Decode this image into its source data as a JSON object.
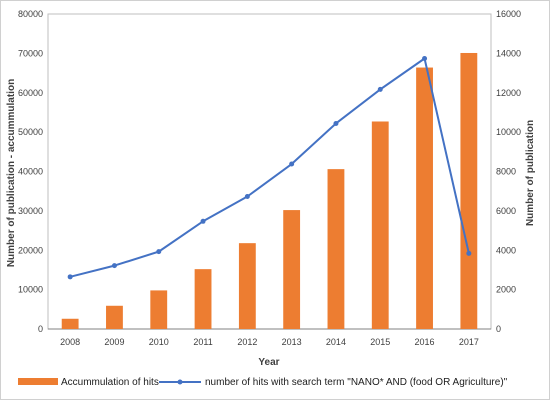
{
  "chart_data": {
    "type": "bar",
    "categories": [
      "2008",
      "2009",
      "2010",
      "2011",
      "2012",
      "2013",
      "2014",
      "2015",
      "2016",
      "2017"
    ],
    "series": [
      {
        "name": "Accummulation of hits",
        "type": "bar",
        "axis": "left",
        "color": "#ed7d31",
        "values": [
          2600,
          5900,
          9800,
          15200,
          21800,
          30200,
          40600,
          52700,
          66400,
          70100
        ]
      },
      {
        "name": "number of hits with search term \"NANO* AND (food OR Agriculture)\"",
        "type": "line",
        "axis": "right",
        "color": "#4472c4",
        "values": [
          2650,
          3220,
          3930,
          5470,
          6730,
          8380,
          10440,
          12170,
          13740,
          3840
        ]
      }
    ],
    "xlabel": "Year",
    "ylabel": "Number of publication - accummulation",
    "y2label": "Number of publication",
    "ylim": [
      0,
      80000
    ],
    "y2lim": [
      0,
      16000
    ],
    "yticks": [
      "0",
      "10000",
      "20000",
      "30000",
      "40000",
      "50000",
      "60000",
      "70000",
      "80000"
    ],
    "y2ticks": [
      "0",
      "2000",
      "4000",
      "6000",
      "8000",
      "10000",
      "12000",
      "14000",
      "16000"
    ],
    "grid": false,
    "legend_position": "bottom"
  }
}
